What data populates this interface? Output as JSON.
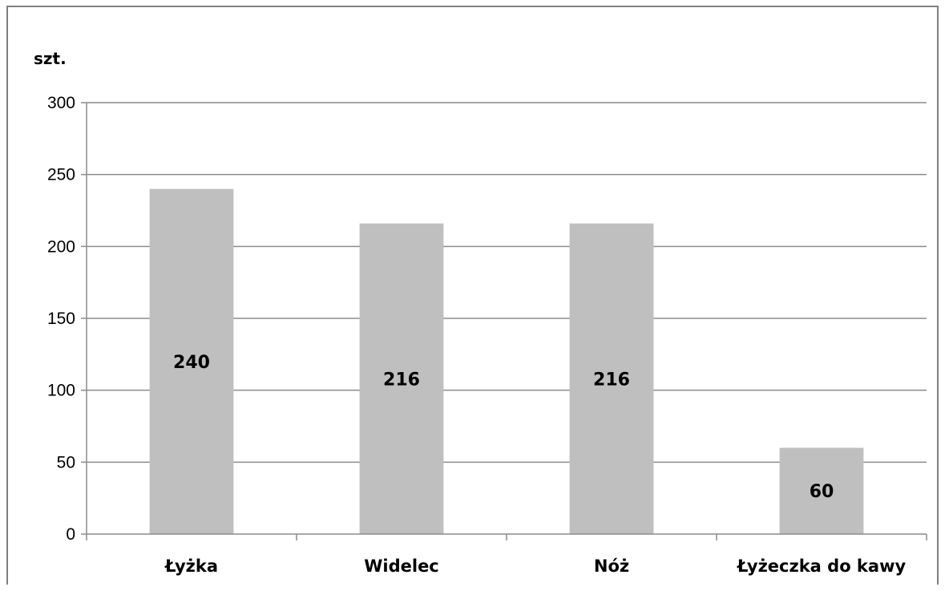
{
  "chart_data": {
    "type": "bar",
    "unit_label": "szt.",
    "categories": [
      "Łyżka",
      "Widelec",
      "Nóż",
      "Łyżeczka do kawy"
    ],
    "values": [
      240,
      216,
      216,
      60
    ],
    "data_labels": [
      "240",
      "216",
      "216",
      "60"
    ],
    "ylim": [
      0,
      300
    ],
    "yticks": [
      0,
      50,
      100,
      150,
      200,
      250,
      300
    ],
    "grid": true,
    "legend": "none",
    "bar_color": "#bfbfbf",
    "grid_color": "#8c8c8c",
    "axis_color": "#8c8c8c"
  }
}
